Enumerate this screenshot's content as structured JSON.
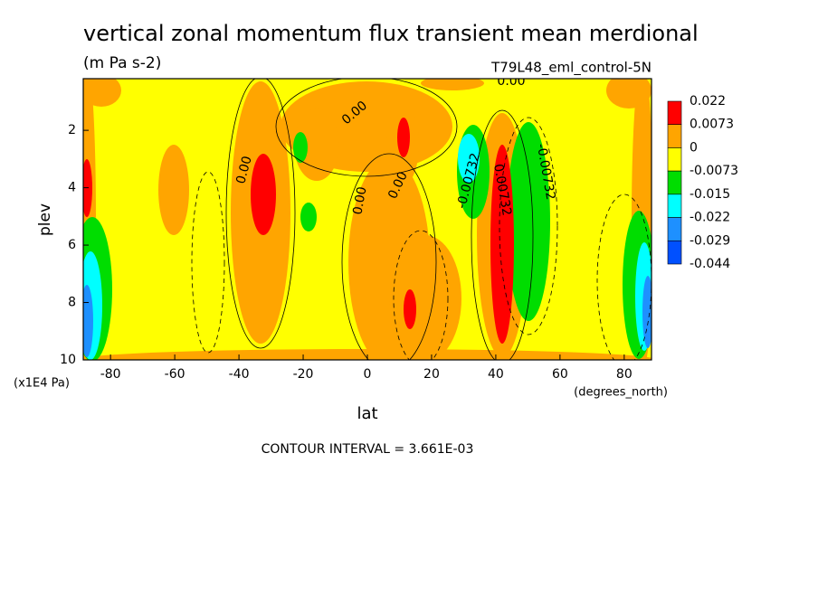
{
  "chart_data": {
    "type": "contour",
    "title": "vertical zonal momentum flux transient mean merdional",
    "subtitle": "(m Pa s-2)",
    "dataset": "T79L48_eml_control-5N",
    "x_label": "lat",
    "x_units": "(degrees_north)",
    "y_label": "plev",
    "y_units": "(x1E4 Pa)",
    "footer": "CONTOUR INTERVAL = 3.661E-03",
    "xlim": [
      -88.5,
      88.5
    ],
    "xticks": [
      -80,
      -60,
      -40,
      -20,
      0,
      20,
      40,
      60,
      80
    ],
    "ylim": [
      10,
      0.2
    ],
    "yticks": [
      2,
      4,
      6,
      8,
      10
    ],
    "levels": [
      0.022,
      0.0073,
      0,
      -0.0073,
      -0.015,
      -0.022,
      -0.029,
      -0.044
    ],
    "level_colors": [
      "#ff0000",
      "#ffa500",
      "#ffff00",
      "#00dd00",
      "#00ffff",
      "#1e90ff",
      "#0050ff"
    ],
    "contour_labels": [
      "0.00",
      "0.00",
      "0.00",
      "0.00",
      "0.00",
      "-0.00732",
      "0.00732",
      "-0.00732"
    ]
  }
}
